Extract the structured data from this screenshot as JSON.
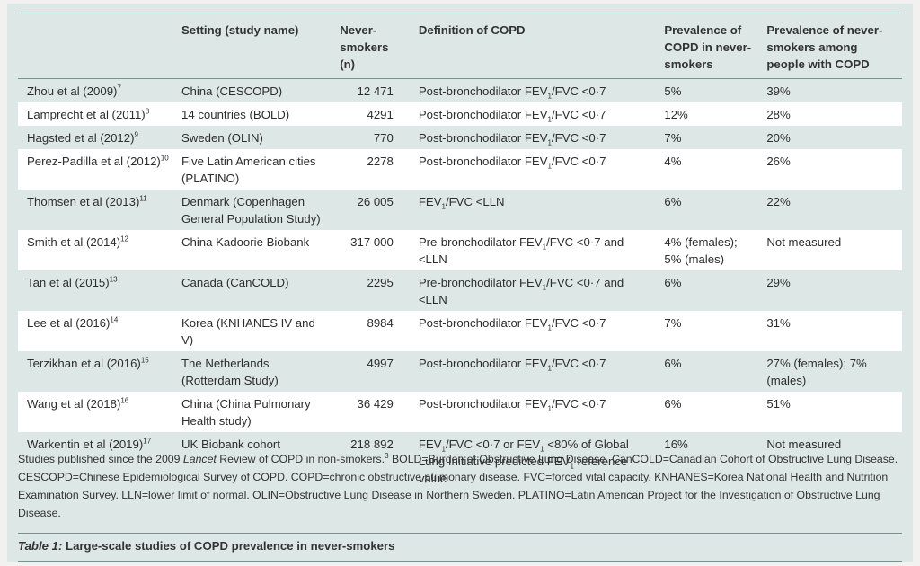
{
  "headers": {
    "study": "",
    "setting": "Setting (study name)",
    "n": "Never-smokers (n)",
    "definition": "Definition of COPD",
    "prevalence": "Prevalence of COPD in never-smokers",
    "prevalence_nevers": "Prevalence of never-smokers among people with COPD"
  },
  "rows": [
    {
      "study": "Zhou et al (2009)",
      "ref": "7",
      "setting": "China (CESCOPD)",
      "n": "12 471",
      "definition": [
        "Post-bronchodilator FEV",
        "1",
        "/FVC <0·7"
      ],
      "prevalence": "5%",
      "prevalence_nevers": "39%"
    },
    {
      "study": "Lamprecht et al (2011)",
      "ref": "8",
      "setting": "14 countries (BOLD)",
      "n": "4291",
      "definition": [
        "Post-bronchodilator FEV",
        "1",
        "/FVC <0·7"
      ],
      "prevalence": "12%",
      "prevalence_nevers": "28%"
    },
    {
      "study": "Hagsted et al (2012)",
      "ref": "9",
      "setting": "Sweden (OLIN)",
      "n": "770",
      "definition": [
        "Post-bronchodilator FEV",
        "1",
        "/FVC <0·7"
      ],
      "prevalence": "7%",
      "prevalence_nevers": "20%"
    },
    {
      "study": "Perez-Padilla et al (2012)",
      "ref": "10",
      "setting": "Five Latin American cities (PLATINO)",
      "n": "2278",
      "definition": [
        "Post-bronchodilator FEV",
        "1",
        "/FVC <0·7"
      ],
      "prevalence": "4%",
      "prevalence_nevers": "26%"
    },
    {
      "study": "Thomsen et al (2013)",
      "ref": "11",
      "setting": "Denmark (Copenhagen General Population Study)",
      "n": "26 005",
      "definition": [
        "FEV",
        "1",
        "/FVC <LLN"
      ],
      "prevalence": "6%",
      "prevalence_nevers": "22%"
    },
    {
      "study": "Smith et al (2014)",
      "ref": "12",
      "setting": "China Kadoorie Biobank",
      "n": "317 000",
      "definition": [
        "Pre-bronchodilator FEV",
        "1",
        "/FVC <0·7 and <LLN"
      ],
      "prevalence": "4% (females); 5% (males)",
      "prevalence_nevers": "Not measured"
    },
    {
      "study": "Tan et al (2015)",
      "ref": "13",
      "setting": "Canada (CanCOLD)",
      "n": "2295",
      "definition": [
        "Pre-bronchodilator FEV",
        "1",
        "/FVC <0·7 and <LLN"
      ],
      "prevalence": "6%",
      "prevalence_nevers": "29%"
    },
    {
      "study": "Lee et al (2016)",
      "ref": "14",
      "setting": "Korea (KNHANES IV and V)",
      "n": "8984",
      "definition": [
        "Post-bronchodilator FEV",
        "1",
        "/FVC <0·7"
      ],
      "prevalence": "7%",
      "prevalence_nevers": "31%"
    },
    {
      "study": "Terzikhan et al (2016)",
      "ref": "15",
      "setting": "The Netherlands (Rotterdam Study)",
      "n": "4997",
      "definition": [
        "Post-bronchodilator FEV",
        "1",
        "/FVC <0·7"
      ],
      "prevalence": "6%",
      "prevalence_nevers": "27% (females); 7% (males)"
    },
    {
      "study": "Wang et al (2018)",
      "ref": "16",
      "setting": "China (China Pulmonary Health study)",
      "n": "36 429",
      "definition": [
        "Post-bronchodilator FEV",
        "1",
        "/FVC <0·7"
      ],
      "prevalence": "6%",
      "prevalence_nevers": "51%"
    },
    {
      "study": "Warkentin et al (2019)",
      "ref": "17",
      "setting": "UK Biobank cohort",
      "n": "218 892",
      "definition": [
        "FEV",
        "1",
        "/FVC <0·7 or FEV",
        "1",
        " <80% of Global Lung Initiative predicted FEV",
        "1",
        " reference value"
      ],
      "prevalence": "16%",
      "prevalence_nevers": "Not measured"
    }
  ],
  "footnote": {
    "part1": "Studies published since the 2009 ",
    "italic": "Lancet",
    "part2": " Review of COPD in non-smokers.",
    "ref": "3",
    "part3": " BOLD=Burden of Obstructive Lung Disease. CanCOLD=Canadian Cohort of Obstructive Lung Disease. CESCOPD=Chinese Epidemiological Survey of COPD. COPD=chronic obstructive pulmonary disease. FVC=forced vital capacity. KNHANES=Korea National Health and Nutrition Examination Survey. LLN=lower limit of normal. OLIN=Obstructive Lung Disease in Northern Sweden. PLATINO=Latin American Project for the Investigation of Obstructive Lung Disease."
  },
  "caption": {
    "label": "Table 1:",
    "text": " Large-scale studies of COPD prevalence in never-smokers"
  }
}
